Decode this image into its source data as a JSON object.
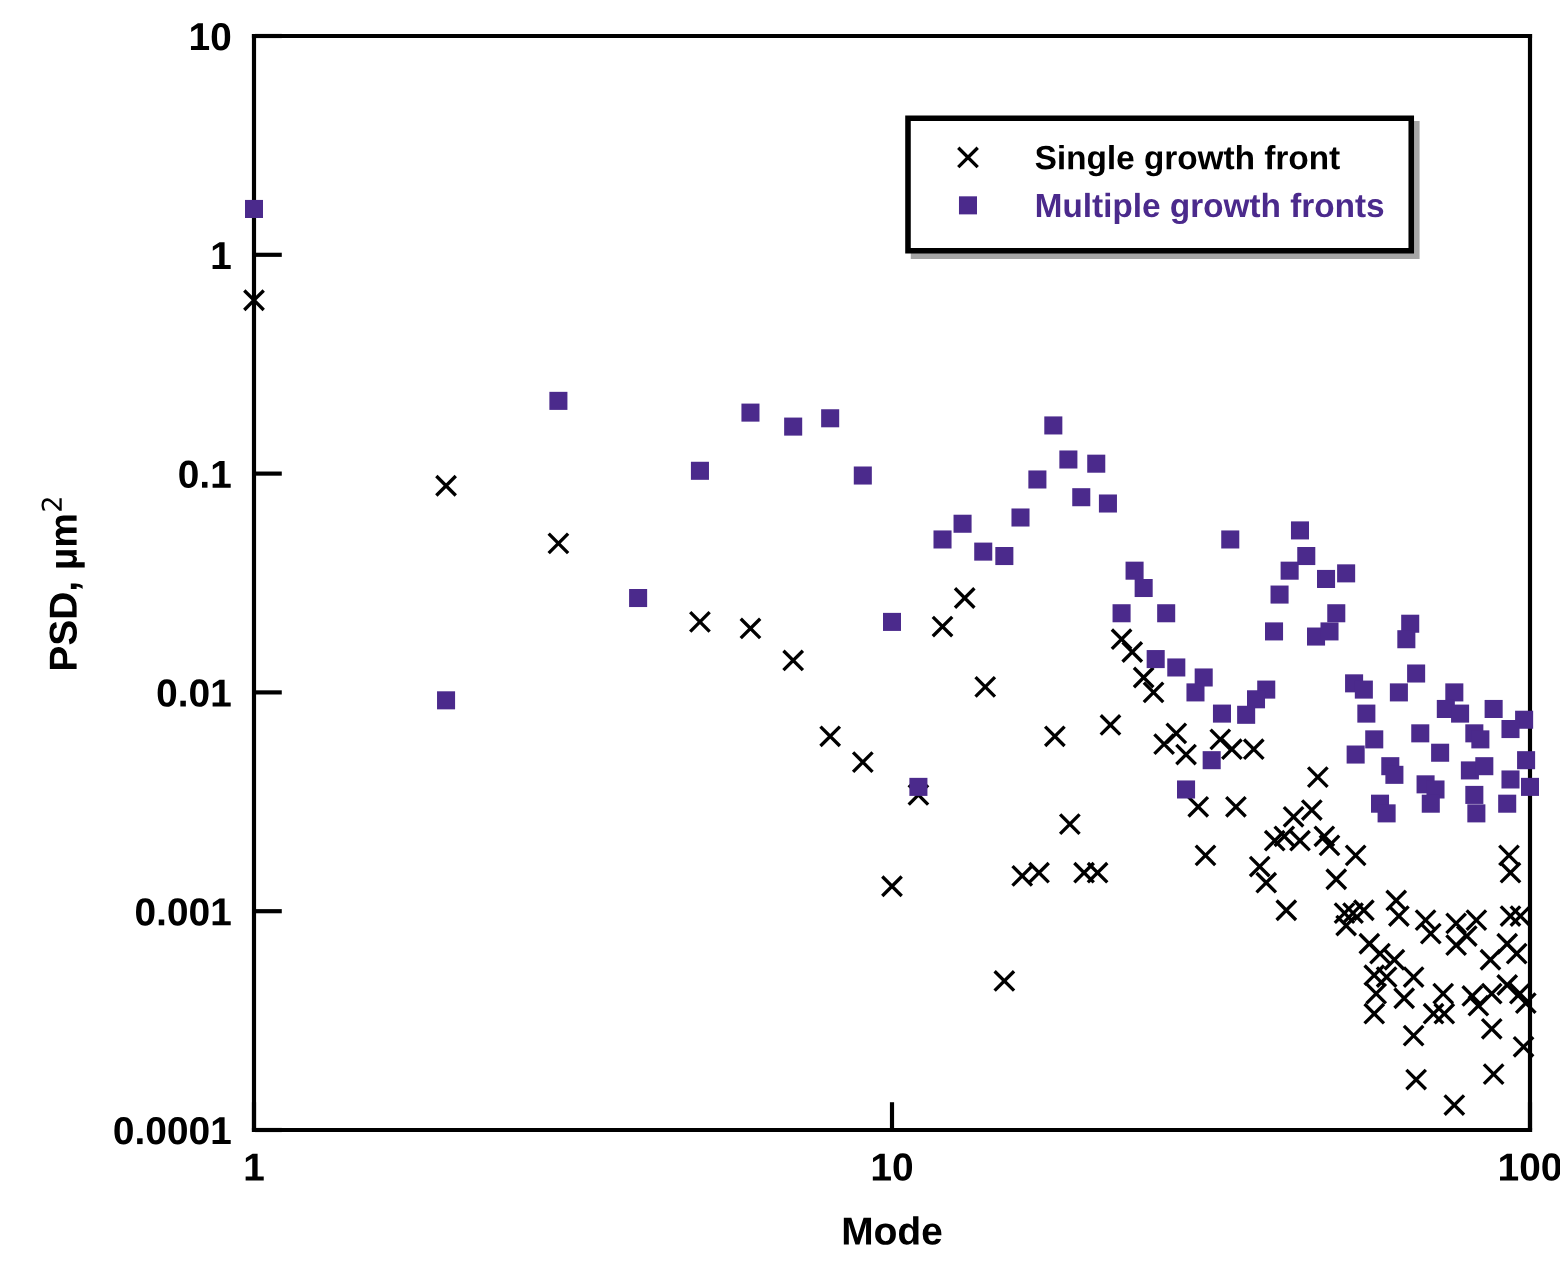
{
  "chart_data": {
    "type": "scatter",
    "xlabel": "Mode",
    "ylabel": "PSD, µm$^{2}$",
    "log": "xy",
    "xlim": [
      1,
      100
    ],
    "ylim": [
      0.0001,
      10
    ],
    "xticks": [
      1,
      10,
      100
    ],
    "yticks": [
      0.0001,
      0.001,
      0.01,
      0.1,
      1,
      10
    ],
    "grid": false,
    "legend": "top right",
    "series": [
      {
        "name": "Single growth front",
        "color": "#000000",
        "marker": "cross",
        "x": [
          1,
          2,
          3,
          5,
          6,
          7,
          8,
          9,
          10,
          11,
          12,
          13,
          14,
          15,
          16,
          17,
          18,
          19,
          20,
          21,
          22,
          22.9,
          23.8,
          24.8,
          25.7,
          26.7,
          27.9,
          28.9,
          32.7,
          34.1,
          36.9,
          30.2,
          34.6,
          31.0,
          46.5,
          42.6,
          45.5,
          39.8,
          41.2,
          43.6,
          47.6,
          48.5,
          53.3,
          37.7,
          38.6,
          41.5,
          49.7,
          51.2,
          52.8,
          54.9,
          51.5,
          56.0,
          58.2,
          61.3,
          61.7,
          62.3,
          68.6,
          69.9,
          76.6,
          79.6,
          82.4,
          76.6,
          92.1,
          95.3,
          86.7,
          93.2,
          96.6,
          57.0,
          59.6,
          65.7,
          57.4,
          63.5,
          73.1,
          70.6,
          73.4,
          81.2,
          83.0,
          87.1,
          92.1,
          96.4,
          98.5,
          57.0,
          65.7,
          87.1,
          97.7,
          66.3,
          87.7,
          76.1,
          92.7,
          93.2
        ],
        "values": [
          0.62,
          0.088,
          0.048,
          0.021,
          0.0196,
          0.014,
          0.0063,
          0.0048,
          0.0013,
          0.0034,
          0.02,
          0.027,
          0.0106,
          0.00048,
          0.00145,
          0.0015,
          0.0063,
          0.0025,
          0.0015,
          0.0015,
          0.0071,
          0.0175,
          0.0153,
          0.0117,
          0.01,
          0.0058,
          0.0065,
          0.0052,
          0.0061,
          0.0055,
          0.0055,
          0.003,
          0.003,
          0.0018,
          0.0041,
          0.0027,
          0.0029,
          0.0021,
          0.0022,
          0.0021,
          0.0022,
          0.002,
          0.0018,
          0.0016,
          0.00135,
          0.00101,
          0.0014,
          0.00098,
          0.00098,
          0.00101,
          0.00086,
          0.00071,
          0.00064,
          0.0006,
          0.00112,
          0.00095,
          0.00091,
          0.00079,
          0.00088,
          0.00077,
          0.00091,
          0.0007,
          0.00071,
          0.00064,
          0.0006,
          0.00095,
          0.00095,
          0.00051,
          0.0005,
          0.0005,
          0.00042,
          0.0004,
          0.00042,
          0.00034,
          0.00034,
          0.00041,
          0.00037,
          0.00042,
          0.00046,
          0.00042,
          0.00038,
          0.00034,
          0.00027,
          0.00029,
          0.00024,
          0.00017,
          0.00018,
          0.00013,
          0.0018,
          0.0015
        ]
      },
      {
        "name": "Multiple growth fronts",
        "color": "#4b2a8c",
        "marker": "square",
        "x": [
          1,
          2,
          3,
          4,
          5,
          6,
          7,
          8,
          9,
          10,
          11,
          12.0,
          12.9,
          13.9,
          15.0,
          15.9,
          16.9,
          17.9,
          18.9,
          20.9,
          19.8,
          21.8,
          24.0,
          24.8,
          22.9,
          26.9,
          25.9,
          27.9,
          30.8,
          29.9,
          32.9,
          31.7,
          28.9,
          33.9,
          43.6,
          44.6,
          42.0,
          40.5,
          47.9,
          51.5,
          49.7,
          46.2,
          48.5,
          39.7,
          64.9,
          64.0,
          38.6,
          37.2,
          35.9,
          53.0,
          54.9,
          66.3,
          62.3,
          55.4,
          76.1,
          73.8,
          77.7,
          87.7,
          97.9,
          67.3,
          57.0,
          72.3,
          81.8,
          83.6,
          93.2,
          53.3,
          60.4,
          61.3,
          80.5,
          84.8,
          98.6,
          68.6,
          71.1,
          93.2,
          100,
          81.8,
          58.2,
          59.6,
          69.9,
          82.4,
          92.1
        ],
        "values": [
          1.62,
          0.0092,
          0.215,
          0.027,
          0.103,
          0.19,
          0.164,
          0.179,
          0.098,
          0.021,
          0.0037,
          0.05,
          0.059,
          0.044,
          0.042,
          0.063,
          0.094,
          0.166,
          0.116,
          0.111,
          0.078,
          0.073,
          0.036,
          0.03,
          0.023,
          0.023,
          0.0142,
          0.013,
          0.0117,
          0.01,
          0.008,
          0.0049,
          0.0036,
          0.05,
          0.055,
          0.042,
          0.036,
          0.028,
          0.033,
          0.035,
          0.023,
          0.018,
          0.019,
          0.019,
          0.0206,
          0.0175,
          0.0103,
          0.0093,
          0.0079,
          0.011,
          0.0103,
          0.0122,
          0.01,
          0.008,
          0.01,
          0.0084,
          0.008,
          0.0084,
          0.0075,
          0.0065,
          0.0061,
          0.0053,
          0.0065,
          0.0061,
          0.0068,
          0.0052,
          0.0046,
          0.0042,
          0.0044,
          0.0046,
          0.0049,
          0.0038,
          0.0036,
          0.004,
          0.0037,
          0.0034,
          0.0031,
          0.0028,
          0.0031,
          0.0028,
          0.0031
        ]
      }
    ]
  }
}
